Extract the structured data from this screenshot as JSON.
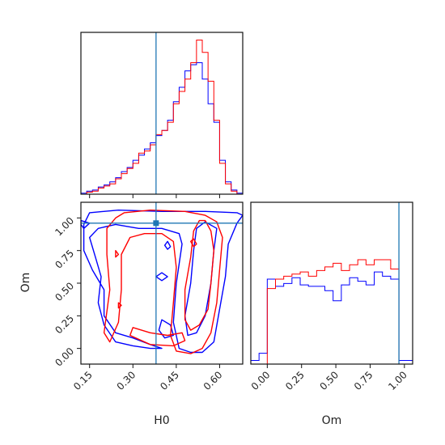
{
  "chart_data": {
    "type": "corner",
    "colors": {
      "series_a": "#ff0000",
      "series_b": "#0000ff",
      "truth": "#1f77b4"
    },
    "truth": {
      "H0": 0.38,
      "Om": 0.96
    },
    "panels": {
      "hist_H0": {
        "xlim": [
          0.12,
          0.68
        ],
        "bin_edges": [
          0.12,
          0.14,
          0.16,
          0.18,
          0.2,
          0.22,
          0.24,
          0.26,
          0.28,
          0.3,
          0.32,
          0.34,
          0.36,
          0.38,
          0.4,
          0.42,
          0.44,
          0.46,
          0.48,
          0.5,
          0.52,
          0.54,
          0.56,
          0.58,
          0.6,
          0.62,
          0.64,
          0.66,
          0.68
        ],
        "series_a_counts": [
          0,
          2,
          3,
          6,
          8,
          10,
          15,
          20,
          25,
          30,
          40,
          42,
          48,
          58,
          62,
          70,
          88,
          100,
          112,
          128,
          150,
          138,
          110,
          72,
          30,
          10,
          3,
          0
        ],
        "series_b_counts": [
          1,
          3,
          4,
          7,
          9,
          12,
          16,
          22,
          26,
          33,
          38,
          44,
          50,
          57,
          62,
          72,
          90,
          104,
          120,
          126,
          128,
          112,
          88,
          70,
          33,
          12,
          4,
          1
        ]
      },
      "hist_Om": {
        "xlim": [
          -0.12,
          1.06
        ],
        "xticks": [
          "0.00",
          "0.25",
          "0.50",
          "0.75",
          "1.00"
        ],
        "xtick_values": [
          0.0,
          0.25,
          0.5,
          0.75,
          1.0
        ],
        "xlabel": "Om",
        "bin_edges": [
          -0.12,
          -0.06,
          0.0,
          0.06,
          0.12,
          0.18,
          0.24,
          0.3,
          0.36,
          0.42,
          0.48,
          0.54,
          0.6,
          0.66,
          0.72,
          0.78,
          0.84,
          0.9,
          0.96,
          1.02,
          1.06
        ],
        "series_a_counts": [
          0,
          0,
          105,
          118,
          122,
          125,
          128,
          122,
          130,
          135,
          140,
          130,
          138,
          145,
          138,
          145,
          145,
          132,
          0,
          0
        ],
        "series_b_counts": [
          5,
          15,
          118,
          108,
          112,
          120,
          110,
          108,
          108,
          102,
          88,
          110,
          120,
          115,
          110,
          128,
          122,
          118,
          5,
          5
        ]
      },
      "scatter_H0_Om": {
        "xlim": [
          0.12,
          0.68
        ],
        "ylim": [
          -0.12,
          1.12
        ],
        "xticks": [
          "0.15",
          "0.30",
          "0.45",
          "0.60"
        ],
        "xtick_values": [
          0.15,
          0.3,
          0.45,
          0.6
        ],
        "yticks": [
          "0.00",
          "0.25",
          "0.50",
          "0.75",
          "1.00"
        ],
        "ytick_values": [
          0.0,
          0.25,
          0.5,
          0.75,
          1.0
        ],
        "xlabel": "H0",
        "ylabel": "Om",
        "contours_a": [
          [
            [
              0.27,
              1.04
            ],
            [
              0.36,
              1.06
            ],
            [
              0.48,
              1.05
            ],
            [
              0.55,
              1.02
            ],
            [
              0.59,
              0.97
            ],
            [
              0.61,
              0.85
            ],
            [
              0.6,
              0.6
            ],
            [
              0.59,
              0.35
            ],
            [
              0.57,
              0.12
            ],
            [
              0.54,
              0.0
            ],
            [
              0.5,
              -0.04
            ],
            [
              0.45,
              -0.02
            ],
            [
              0.43,
              0.1
            ],
            [
              0.44,
              0.35
            ],
            [
              0.45,
              0.62
            ],
            [
              0.44,
              0.82
            ],
            [
              0.4,
              0.88
            ],
            [
              0.34,
              0.88
            ],
            [
              0.29,
              0.85
            ],
            [
              0.26,
              0.72
            ],
            [
              0.26,
              0.45
            ],
            [
              0.25,
              0.2
            ],
            [
              0.22,
              0.05
            ],
            [
              0.2,
              0.12
            ],
            [
              0.22,
              0.45
            ],
            [
              0.21,
              0.72
            ],
            [
              0.21,
              0.92
            ],
            [
              0.24,
              1.0
            ],
            [
              0.27,
              1.04
            ]
          ],
          [
            [
              0.29,
              0.1
            ],
            [
              0.36,
              0.03
            ],
            [
              0.44,
              0.02
            ],
            [
              0.48,
              0.06
            ],
            [
              0.47,
              0.12
            ],
            [
              0.42,
              0.1
            ],
            [
              0.36,
              0.12
            ],
            [
              0.3,
              0.16
            ],
            [
              0.29,
              0.1
            ]
          ],
          [
            [
              0.55,
              0.98
            ],
            [
              0.57,
              0.9
            ],
            [
              0.58,
              0.75
            ],
            [
              0.57,
              0.5
            ],
            [
              0.56,
              0.3
            ],
            [
              0.53,
              0.18
            ],
            [
              0.5,
              0.14
            ],
            [
              0.48,
              0.22
            ],
            [
              0.48,
              0.45
            ],
            [
              0.5,
              0.7
            ],
            [
              0.51,
              0.9
            ],
            [
              0.53,
              0.98
            ],
            [
              0.55,
              0.98
            ]
          ],
          [
            [
              0.51,
              0.84
            ],
            [
              0.52,
              0.8
            ],
            [
              0.51,
              0.78
            ],
            [
              0.5,
              0.82
            ],
            [
              0.51,
              0.84
            ]
          ],
          [
            [
              0.24,
              0.75
            ],
            [
              0.25,
              0.72
            ],
            [
              0.24,
              0.7
            ],
            [
              0.24,
              0.75
            ]
          ],
          [
            [
              0.25,
              0.35
            ],
            [
              0.26,
              0.33
            ],
            [
              0.25,
              0.31
            ],
            [
              0.25,
              0.35
            ]
          ]
        ],
        "contours_b": [
          [
            [
              0.15,
              1.04
            ],
            [
              0.25,
              1.06
            ],
            [
              0.4,
              1.05
            ],
            [
              0.55,
              1.05
            ],
            [
              0.66,
              1.04
            ],
            [
              0.68,
              1.02
            ],
            [
              0.66,
              0.96
            ],
            [
              0.63,
              0.8
            ],
            [
              0.62,
              0.55
            ],
            [
              0.6,
              0.3
            ],
            [
              0.58,
              0.05
            ],
            [
              0.54,
              -0.03
            ],
            [
              0.5,
              -0.03
            ],
            [
              0.46,
              0.0
            ],
            [
              0.44,
              0.2
            ],
            [
              0.45,
              0.5
            ],
            [
              0.47,
              0.8
            ],
            [
              0.46,
              0.88
            ],
            [
              0.4,
              0.92
            ],
            [
              0.32,
              0.92
            ],
            [
              0.24,
              0.95
            ],
            [
              0.18,
              0.92
            ],
            [
              0.15,
              0.85
            ],
            [
              0.17,
              0.7
            ],
            [
              0.19,
              0.55
            ],
            [
              0.18,
              0.35
            ],
            [
              0.2,
              0.18
            ],
            [
              0.24,
              0.05
            ],
            [
              0.3,
              0.02
            ],
            [
              0.36,
              0.0
            ],
            [
              0.4,
              0.0
            ],
            [
              0.36,
              0.03
            ],
            [
              0.3,
              0.08
            ],
            [
              0.24,
              0.12
            ],
            [
              0.2,
              0.25
            ],
            [
              0.2,
              0.45
            ],
            [
              0.16,
              0.6
            ],
            [
              0.13,
              0.75
            ],
            [
              0.13,
              0.95
            ],
            [
              0.15,
              1.04
            ]
          ],
          [
            [
              0.55,
              0.97
            ],
            [
              0.59,
              0.92
            ],
            [
              0.58,
              0.75
            ],
            [
              0.57,
              0.5
            ],
            [
              0.55,
              0.25
            ],
            [
              0.52,
              0.12
            ],
            [
              0.49,
              0.1
            ],
            [
              0.48,
              0.25
            ],
            [
              0.5,
              0.5
            ],
            [
              0.51,
              0.75
            ],
            [
              0.52,
              0.92
            ],
            [
              0.55,
              0.97
            ]
          ],
          [
            [
              0.4,
              0.22
            ],
            [
              0.43,
              0.18
            ],
            [
              0.44,
              0.1
            ],
            [
              0.41,
              0.08
            ],
            [
              0.39,
              0.14
            ],
            [
              0.4,
              0.22
            ]
          ],
          [
            [
              0.4,
              0.58
            ],
            [
              0.42,
              0.55
            ],
            [
              0.4,
              0.52
            ],
            [
              0.38,
              0.55
            ],
            [
              0.4,
              0.58
            ]
          ],
          [
            [
              0.42,
              0.82
            ],
            [
              0.43,
              0.78
            ],
            [
              0.42,
              0.76
            ],
            [
              0.41,
              0.79
            ],
            [
              0.42,
              0.82
            ]
          ],
          [
            [
              0.12,
              0.98
            ],
            [
              0.15,
              0.96
            ],
            [
              0.13,
              0.92
            ],
            [
              0.12,
              0.95
            ],
            [
              0.12,
              0.98
            ]
          ]
        ]
      }
    }
  }
}
